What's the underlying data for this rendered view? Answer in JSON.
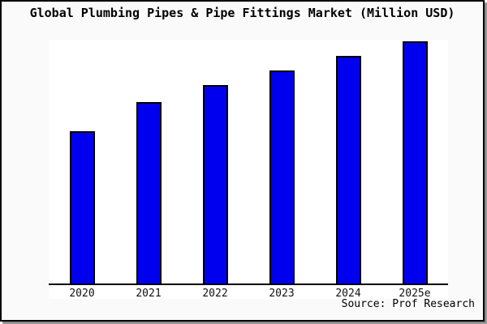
{
  "figure": {
    "title": "Global Plumbing Pipes & Pipe Fittings Market (Million USD)",
    "source_credit": "Source: Prof Research"
  },
  "colors": {
    "figure_background": "#FAFAFA",
    "plot_background": "#FFFFFF",
    "bar_fill": "#0000EE",
    "bar_outline": "#000000",
    "axis_line": "#000000",
    "frame_border": "#000000",
    "drop_shadow": "#666666",
    "text": "#000000"
  },
  "chart_data": {
    "type": "bar",
    "title": "Global Plumbing Pipes & Pipe Fittings Market (Million USD)",
    "categories": [
      "2020",
      "2021",
      "2022",
      "2023",
      "2024",
      "2025e"
    ],
    "values": [
      63,
      75,
      82,
      88,
      94,
      100
    ],
    "value_units": "relative index (y-axis unlabeled; bar heights estimated with 2025e = 100)",
    "xlabel": "",
    "ylabel": "",
    "ylim": [
      0,
      100
    ],
    "grid": false,
    "legend": false,
    "y_axis_visible": false,
    "annotation": "Source: Prof Research"
  }
}
